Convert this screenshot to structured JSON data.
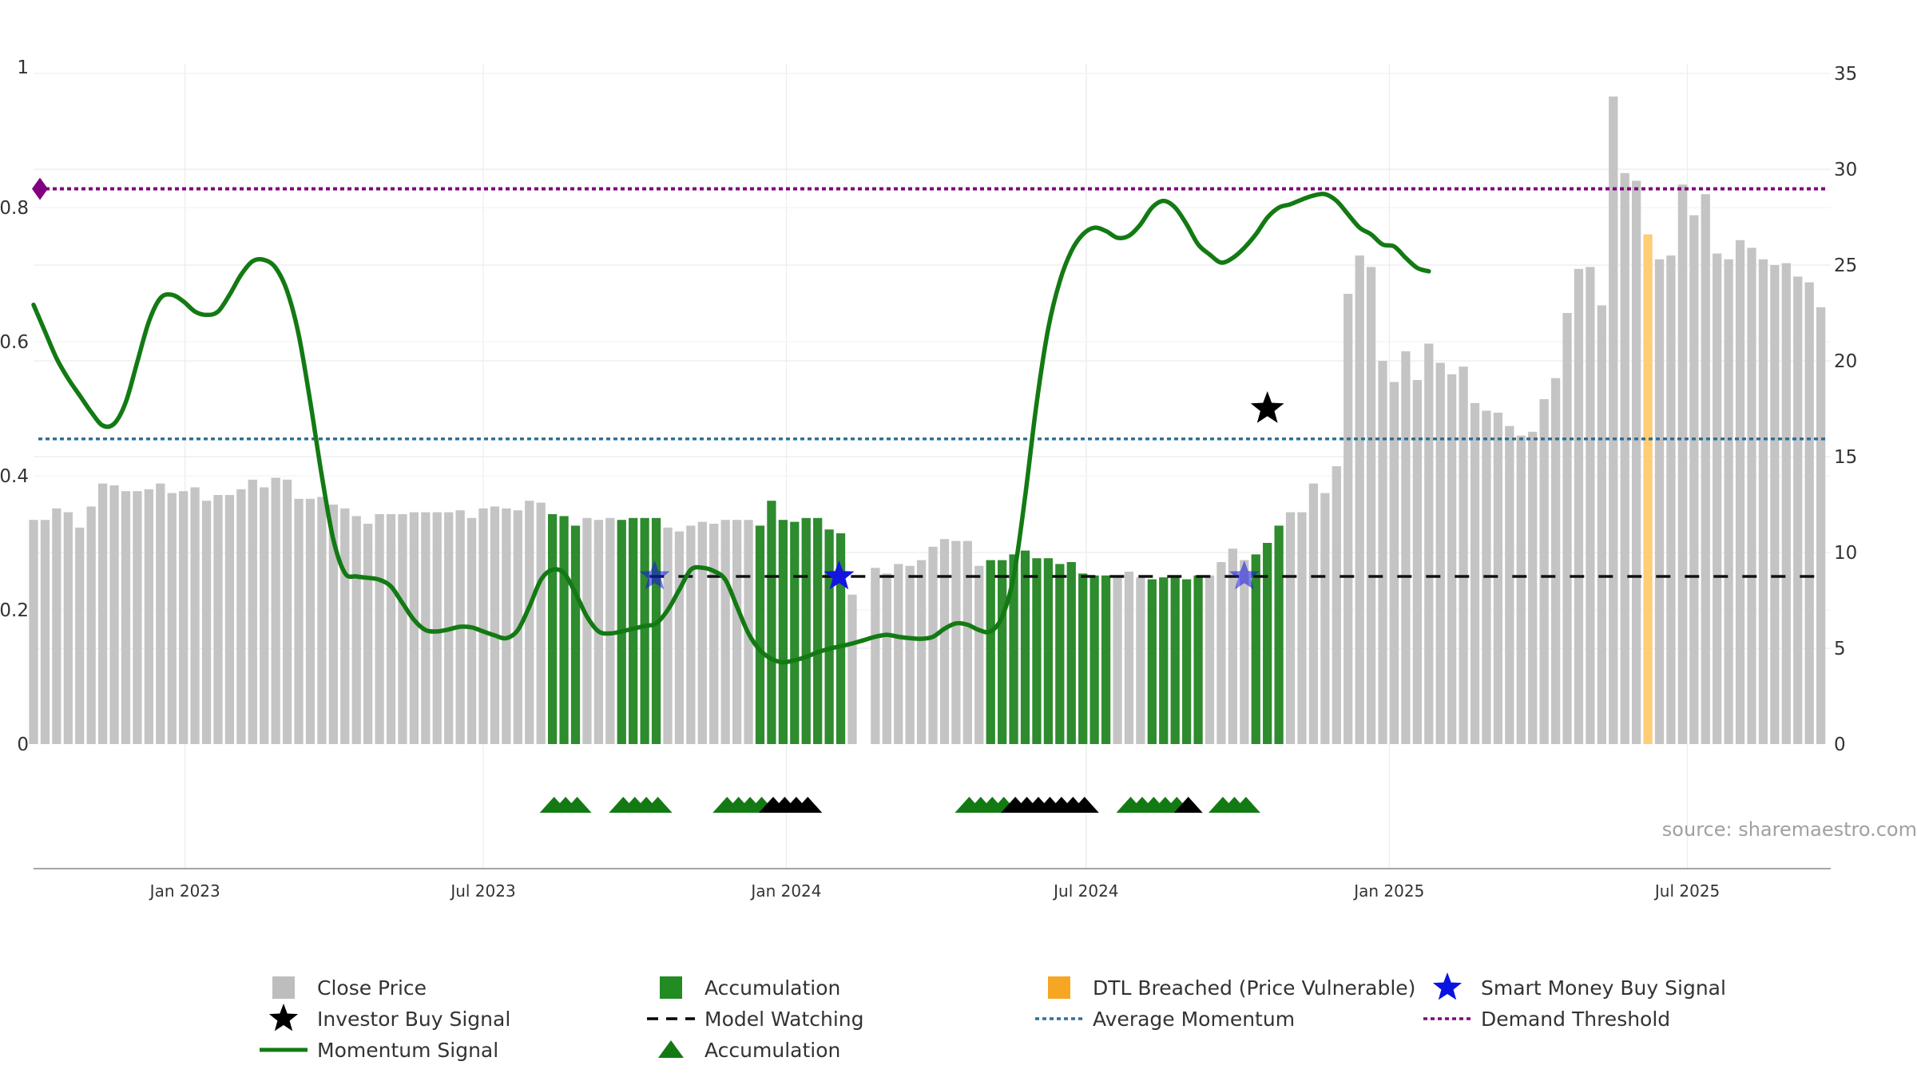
{
  "chart_data": {
    "type": "bar",
    "title": "",
    "xlabel": "",
    "ylabel_left": "",
    "ylabel_right": "",
    "left_axis": {
      "range": [
        0,
        1
      ],
      "ticks": [
        0,
        0.2,
        0.4,
        0.6,
        0.8,
        1
      ],
      "labels": [
        "0",
        "0.2",
        "0.4",
        "0.6",
        "0.8",
        "1"
      ]
    },
    "right_axis": {
      "range": [
        0,
        35
      ],
      "ticks": [
        0,
        5,
        10,
        15,
        20,
        25,
        30,
        35
      ],
      "labels": [
        "0",
        "5",
        "10",
        "15",
        "20",
        "25",
        "30",
        "35"
      ]
    },
    "x_axis": {
      "start": "2022-10-01",
      "end": "2025-09-26",
      "ticks": [
        {
          "date": "2023-01-01",
          "label": "Jan 2023"
        },
        {
          "date": "2023-07-01",
          "label": "Jul 2023"
        },
        {
          "date": "2024-01-01",
          "label": "Jan 2024"
        },
        {
          "date": "2024-07-01",
          "label": "Jul 2024"
        },
        {
          "date": "2025-01-01",
          "label": "Jan 2025"
        },
        {
          "date": "2025-07-01",
          "label": "Jul 2025"
        }
      ]
    },
    "bars": {
      "start": "2022-10-01",
      "step_days": 7,
      "values": [
        11.7,
        11.7,
        12.3,
        12.1,
        11.3,
        12.4,
        13.6,
        13.5,
        13.2,
        13.2,
        13.3,
        13.6,
        13.1,
        13.2,
        13.4,
        12.7,
        13.0,
        13.0,
        13.3,
        13.8,
        13.4,
        13.9,
        13.8,
        12.8,
        12.8,
        12.9,
        12.5,
        12.3,
        11.9,
        11.5,
        12.0,
        12.0,
        12.0,
        12.1,
        12.1,
        12.1,
        12.1,
        12.2,
        11.8,
        12.3,
        12.4,
        12.3,
        12.2,
        12.7,
        12.6,
        12.0,
        11.9,
        11.4,
        11.8,
        11.7,
        11.8,
        11.7,
        11.8,
        11.8,
        11.8,
        11.3,
        11.1,
        11.4,
        11.6,
        11.5,
        11.7,
        11.7,
        11.7,
        11.4,
        12.7,
        11.7,
        11.6,
        11.8,
        11.8,
        11.2,
        11.0,
        7.8,
        0,
        9.2,
        8.9,
        9.4,
        9.3,
        9.6,
        10.3,
        10.7,
        10.6,
        10.6,
        9.3,
        9.6,
        9.6,
        9.9,
        10.1,
        9.7,
        9.7,
        9.4,
        9.5,
        8.9,
        8.8,
        8.8,
        8.7,
        9.0,
        8.7,
        8.6,
        8.7,
        8.7,
        8.6,
        8.8,
        8.8,
        9.5,
        10.2,
        9.6,
        9.9,
        10.5,
        11.4,
        12.1,
        12.1,
        13.6,
        13.1,
        14.5,
        23.5,
        25.5,
        24.9,
        20.0,
        18.9,
        20.5,
        19.0,
        20.9,
        19.9,
        19.3,
        19.7,
        17.8,
        17.4,
        17.3,
        16.6,
        16.1,
        16.3,
        18.0,
        19.1,
        22.5,
        24.8,
        24.9,
        22.9,
        33.8,
        29.8,
        29.4,
        26.6,
        25.3,
        25.5,
        29.2,
        27.6,
        28.7,
        25.6,
        25.3,
        26.3,
        25.9,
        25.3,
        25.0,
        25.1,
        24.4,
        24.1,
        22.8
      ],
      "colors": [
        "gray",
        "gray",
        "gray",
        "gray",
        "gray",
        "gray",
        "gray",
        "gray",
        "gray",
        "gray",
        "gray",
        "gray",
        "gray",
        "gray",
        "gray",
        "gray",
        "gray",
        "gray",
        "gray",
        "gray",
        "gray",
        "gray",
        "gray",
        "gray",
        "gray",
        "gray",
        "gray",
        "gray",
        "gray",
        "gray",
        "gray",
        "gray",
        "gray",
        "gray",
        "gray",
        "gray",
        "gray",
        "gray",
        "gray",
        "gray",
        "gray",
        "gray",
        "gray",
        "gray",
        "gray",
        "green",
        "green",
        "green",
        "gray",
        "gray",
        "gray",
        "green",
        "green",
        "green",
        "green",
        "gray",
        "gray",
        "gray",
        "gray",
        "gray",
        "gray",
        "gray",
        "gray",
        "green",
        "green",
        "green",
        "green",
        "green",
        "green",
        "green",
        "green",
        "gray",
        "gray",
        "gray",
        "gray",
        "gray",
        "gray",
        "gray",
        "gray",
        "gray",
        "gray",
        "gray",
        "gray",
        "green",
        "green",
        "green",
        "green",
        "green",
        "green",
        "green",
        "green",
        "green",
        "green",
        "green",
        "gray",
        "gray",
        "gray",
        "green",
        "green",
        "green",
        "green",
        "green",
        "gray",
        "gray",
        "gray",
        "gray",
        "green",
        "green",
        "green",
        "gray",
        "gray",
        "gray",
        "gray",
        "gray",
        "gray",
        "gray",
        "gray",
        "gray",
        "gray",
        "gray",
        "gray",
        "gray",
        "gray",
        "gray",
        "gray",
        "gray",
        "gray",
        "gray",
        "gray",
        "gray",
        "gray",
        "gray",
        "gray",
        "gray",
        "gray",
        "gray",
        "gray",
        "gray",
        "gray",
        "gray",
        "orange",
        "gray",
        "gray",
        "gray",
        "gray",
        "gray",
        "gray",
        "gray",
        "gray",
        "gray",
        "gray",
        "gray",
        "gray",
        "gray",
        "gray",
        "gray",
        "gray",
        "gray"
      ]
    },
    "momentum": {
      "start": "2022-10-01",
      "step_days": 7,
      "values": [
        0.655,
        0.615,
        0.575,
        0.545,
        0.52,
        0.495,
        0.475,
        0.478,
        0.51,
        0.57,
        0.63,
        0.665,
        0.67,
        0.66,
        0.645,
        0.64,
        0.645,
        0.67,
        0.7,
        0.72,
        0.722,
        0.71,
        0.675,
        0.61,
        0.51,
        0.4,
        0.305,
        0.255,
        0.25,
        0.248,
        0.245,
        0.235,
        0.21,
        0.185,
        0.17,
        0.168,
        0.171,
        0.175,
        0.174,
        0.168,
        0.162,
        0.158,
        0.17,
        0.205,
        0.245,
        0.26,
        0.255,
        0.225,
        0.19,
        0.168,
        0.165,
        0.168,
        0.172,
        0.176,
        0.18,
        0.2,
        0.23,
        0.26,
        0.263,
        0.258,
        0.245,
        0.205,
        0.165,
        0.14,
        0.127,
        0.122,
        0.125,
        0.13,
        0.137,
        0.142,
        0.146,
        0.15,
        0.155,
        0.16,
        0.163,
        0.16,
        0.158,
        0.157,
        0.16,
        0.172,
        0.18,
        0.178,
        0.17,
        0.168,
        0.19,
        0.25,
        0.37,
        0.51,
        0.62,
        0.69,
        0.735,
        0.76,
        0.77,
        0.765,
        0.755,
        0.758,
        0.775,
        0.8,
        0.81,
        0.8,
        0.775,
        0.745,
        0.73,
        0.718,
        0.725,
        0.74,
        0.76,
        0.785,
        0.8,
        0.805,
        0.812,
        0.818,
        0.82,
        0.81,
        0.79,
        0.77,
        0.76,
        0.745,
        0.742,
        0.725,
        0.71,
        0.705
      ]
    },
    "thresholds": {
      "average_momentum": 0.455,
      "demand_threshold": 0.828,
      "model_watching": 0.25
    },
    "signals": {
      "investor_buy": [
        {
          "date": "2024-10-19",
          "value": 0.5
        }
      ],
      "smart_money_buy": [
        {
          "date": "2023-10-13",
          "value": 0.25
        },
        {
          "date": "2024-02-02",
          "value": 0.25
        },
        {
          "date": "2024-10-05",
          "value": 0.25
        }
      ],
      "momentum_start_marker": {
        "date": "2022-10-01",
        "value": 0.828
      }
    },
    "accumulation_triangles": [
      {
        "date": "2023-08-13",
        "color": "green"
      },
      {
        "date": "2023-08-20",
        "color": "green"
      },
      {
        "date": "2023-08-27",
        "color": "green"
      },
      {
        "date": "2023-09-24",
        "color": "green"
      },
      {
        "date": "2023-10-01",
        "color": "green"
      },
      {
        "date": "2023-10-08",
        "color": "green"
      },
      {
        "date": "2023-10-15",
        "color": "green"
      },
      {
        "date": "2023-11-26",
        "color": "green"
      },
      {
        "date": "2023-12-03",
        "color": "green"
      },
      {
        "date": "2023-12-10",
        "color": "green"
      },
      {
        "date": "2023-12-17",
        "color": "green"
      },
      {
        "date": "2023-12-24",
        "color": "black"
      },
      {
        "date": "2023-12-31",
        "color": "black"
      },
      {
        "date": "2024-01-07",
        "color": "black"
      },
      {
        "date": "2024-01-14",
        "color": "black"
      },
      {
        "date": "2024-04-21",
        "color": "green"
      },
      {
        "date": "2024-04-28",
        "color": "green"
      },
      {
        "date": "2024-05-05",
        "color": "green"
      },
      {
        "date": "2024-05-12",
        "color": "green"
      },
      {
        "date": "2024-05-19",
        "color": "black"
      },
      {
        "date": "2024-05-26",
        "color": "black"
      },
      {
        "date": "2024-06-02",
        "color": "black"
      },
      {
        "date": "2024-06-09",
        "color": "black"
      },
      {
        "date": "2024-06-16",
        "color": "black"
      },
      {
        "date": "2024-06-23",
        "color": "black"
      },
      {
        "date": "2024-06-30",
        "color": "black"
      },
      {
        "date": "2024-07-28",
        "color": "green"
      },
      {
        "date": "2024-08-04",
        "color": "green"
      },
      {
        "date": "2024-08-11",
        "color": "green"
      },
      {
        "date": "2024-08-18",
        "color": "green"
      },
      {
        "date": "2024-08-25",
        "color": "green"
      },
      {
        "date": "2024-09-01",
        "color": "black"
      },
      {
        "date": "2024-09-22",
        "color": "green"
      },
      {
        "date": "2024-09-29",
        "color": "green"
      },
      {
        "date": "2024-10-06",
        "color": "green"
      }
    ],
    "annotation": "source: sharemaestro.com",
    "legend": {
      "position": "bottom",
      "items": [
        {
          "label": "Close Price",
          "marker": "square",
          "color": "#bdbdbd"
        },
        {
          "label": "Accumulation",
          "marker": "square",
          "color": "#228b22"
        },
        {
          "label": "DTL Breached (Price Vulnerable)",
          "marker": "square",
          "color": "#f6a623"
        },
        {
          "label": "Smart Money Buy Signal",
          "marker": "star",
          "color": "#0a14e0"
        },
        {
          "label": "Investor Buy Signal",
          "marker": "star",
          "color": "#000000"
        },
        {
          "label": "Model Watching",
          "marker": "dash",
          "color": "#000000"
        },
        {
          "label": "Average Momentum",
          "marker": "dotted",
          "color": "#2f6f99"
        },
        {
          "label": "Demand Threshold",
          "marker": "dotted",
          "color": "#800080"
        },
        {
          "label": "Momentum Signal",
          "marker": "line",
          "color": "#137a13"
        },
        {
          "label": "Accumulation",
          "marker": "triangle",
          "color": "#137a13"
        }
      ]
    },
    "colors": {
      "bar_gray": "#c4c4c4",
      "bar_green": "#2e8b2e",
      "bar_orange": "#ffcc77",
      "momentum_green": "#137a13",
      "average_blue": "#2f6f99",
      "demand_purple": "#800080",
      "smart_money_blue": "#1515e0",
      "grid": "#ececec",
      "axis": "#888888"
    }
  }
}
